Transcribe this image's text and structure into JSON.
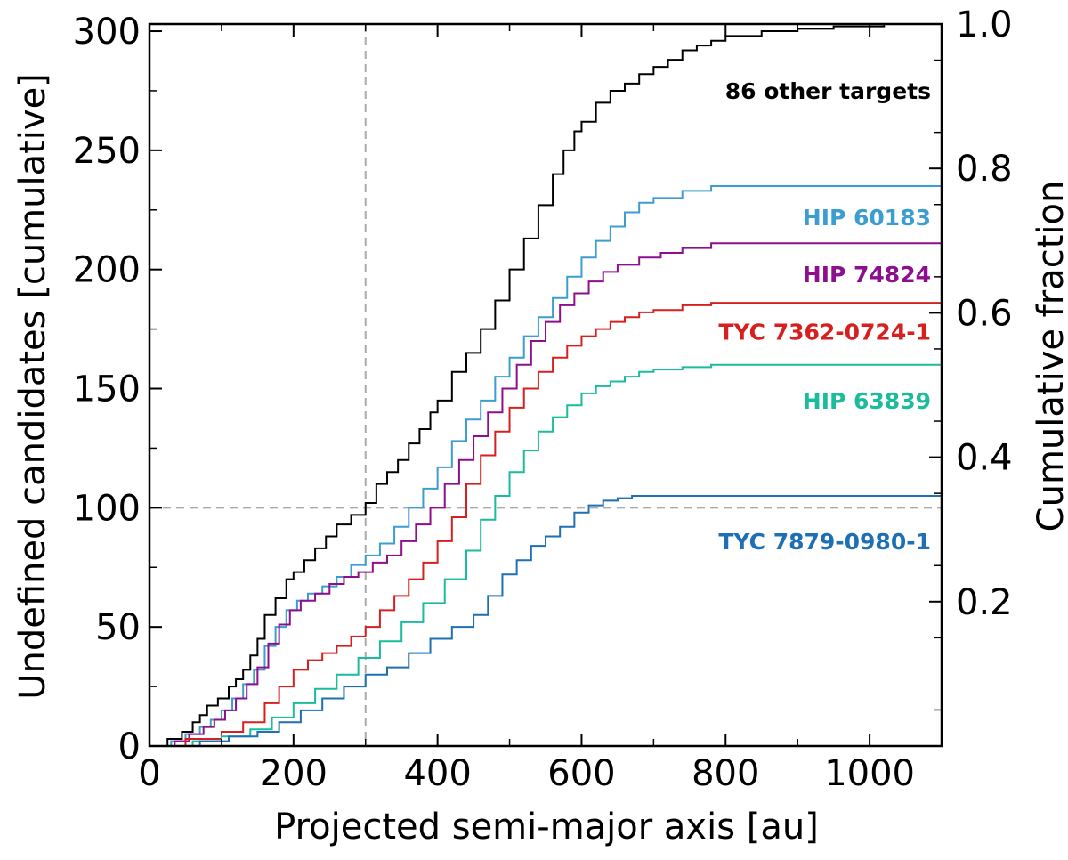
{
  "chart_data": {
    "type": "line",
    "step": true,
    "xlabel": "Projected semi-major axis [au]",
    "ylabel": "Undefined candidates [cumulative]",
    "y2label": "Cumulative fraction",
    "xlim": [
      0,
      1100
    ],
    "ylim": [
      0,
      303
    ],
    "y2lim": [
      0,
      1.0
    ],
    "xticks": [
      0,
      200,
      400,
      600,
      800,
      1000
    ],
    "yticks": [
      0,
      50,
      100,
      150,
      200,
      250,
      300
    ],
    "y2ticks": [
      0.2,
      0.4,
      0.6,
      0.8,
      1.0
    ],
    "xtick_labels": [
      "0",
      "200",
      "400",
      "600",
      "800",
      "1000"
    ],
    "ytick_labels": [
      "0",
      "50",
      "100",
      "150",
      "200",
      "250",
      "300"
    ],
    "y2tick_labels": [
      "0.2",
      "0.4",
      "0.6",
      "0.8",
      "1.0"
    ],
    "reference_lines": [
      {
        "axis": "x",
        "value": 300,
        "color": "#aaaaaa",
        "style": "dashed"
      },
      {
        "axis": "y",
        "value": 100,
        "color": "#aaaaaa",
        "style": "dashed"
      }
    ],
    "series": [
      {
        "name": "86 other targets",
        "color": "#000000",
        "label_y": 275,
        "x": [
          0,
          25,
          45,
          60,
          70,
          80,
          95,
          110,
          120,
          130,
          140,
          150,
          160,
          175,
          190,
          200,
          215,
          230,
          245,
          260,
          280,
          300,
          315,
          330,
          345,
          360,
          375,
          390,
          400,
          420,
          440,
          460,
          480,
          500,
          520,
          540,
          560,
          575,
          590,
          600,
          620,
          640,
          660,
          680,
          700,
          720,
          740,
          760,
          780,
          800,
          850,
          900,
          950,
          1020
        ],
        "y": [
          0,
          3,
          6,
          10,
          13,
          17,
          20,
          25,
          28,
          32,
          38,
          45,
          55,
          62,
          70,
          73,
          78,
          83,
          88,
          93,
          97,
          102,
          110,
          115,
          120,
          127,
          133,
          140,
          145,
          157,
          165,
          175,
          187,
          200,
          213,
          227,
          240,
          250,
          258,
          262,
          270,
          275,
          278,
          282,
          285,
          288,
          292,
          294,
          296,
          298,
          300,
          301,
          302,
          303
        ]
      },
      {
        "name": "HIP 60183",
        "color": "#3c9dd0",
        "label_y": 222,
        "x": [
          0,
          30,
          50,
          70,
          85,
          100,
          115,
          130,
          145,
          160,
          175,
          190,
          205,
          220,
          240,
          260,
          280,
          300,
          320,
          340,
          360,
          380,
          400,
          420,
          440,
          460,
          480,
          500,
          520,
          540,
          560,
          580,
          600,
          620,
          640,
          660,
          680,
          700,
          740,
          780
        ],
        "y": [
          0,
          2,
          5,
          8,
          11,
          15,
          20,
          26,
          32,
          42,
          50,
          57,
          61,
          64,
          67,
          71,
          76,
          80,
          85,
          92,
          100,
          108,
          117,
          128,
          137,
          145,
          155,
          163,
          172,
          180,
          188,
          197,
          205,
          212,
          218,
          224,
          228,
          230,
          233,
          235
        ]
      },
      {
        "name": "HIP 74824",
        "color": "#8e0f8e",
        "label_y": 198,
        "x": [
          0,
          35,
          55,
          75,
          90,
          105,
          120,
          135,
          150,
          165,
          180,
          195,
          210,
          230,
          250,
          270,
          290,
          310,
          330,
          350,
          370,
          390,
          410,
          430,
          450,
          470,
          490,
          510,
          530,
          550,
          570,
          590,
          610,
          630,
          650,
          680,
          710,
          740,
          780
        ],
        "y": [
          0,
          2,
          5,
          8,
          11,
          15,
          20,
          26,
          33,
          43,
          51,
          57,
          61,
          64,
          68,
          71,
          73,
          77,
          80,
          86,
          93,
          100,
          110,
          120,
          130,
          140,
          150,
          160,
          170,
          178,
          185,
          190,
          195,
          199,
          202,
          205,
          207,
          209,
          211
        ]
      },
      {
        "name": "TYC 7362-0724-1",
        "color": "#d62020",
        "label_y": 174,
        "x": [
          0,
          50,
          100,
          130,
          160,
          180,
          200,
          220,
          240,
          260,
          280,
          300,
          320,
          340,
          360,
          380,
          400,
          420,
          440,
          460,
          480,
          500,
          520,
          540,
          560,
          580,
          600,
          620,
          640,
          660,
          680,
          700,
          740,
          780
        ],
        "y": [
          0,
          3,
          6,
          10,
          18,
          25,
          32,
          36,
          39,
          42,
          46,
          50,
          57,
          63,
          70,
          77,
          86,
          96,
          110,
          122,
          132,
          142,
          150,
          157,
          163,
          168,
          172,
          175,
          178,
          180,
          182,
          183,
          185,
          186
        ]
      },
      {
        "name": "HIP 63839",
        "color": "#1abc9c",
        "label_y": 145,
        "x": [
          0,
          60,
          100,
          140,
          170,
          200,
          230,
          260,
          290,
          320,
          350,
          380,
          410,
          440,
          460,
          480,
          500,
          520,
          540,
          560,
          580,
          600,
          620,
          640,
          660,
          680,
          700,
          740,
          780
        ],
        "y": [
          0,
          2,
          4,
          7,
          12,
          18,
          24,
          30,
          37,
          44,
          52,
          60,
          70,
          82,
          95,
          105,
          115,
          124,
          132,
          138,
          143,
          148,
          151,
          153,
          155,
          157,
          158,
          159,
          160
        ]
      },
      {
        "name": "TYC 7879-0980-1",
        "color": "#1f6fb4",
        "label_y": 86,
        "x": [
          0,
          70,
          110,
          150,
          180,
          210,
          240,
          270,
          300,
          330,
          360,
          390,
          420,
          450,
          470,
          490,
          510,
          530,
          550,
          570,
          590,
          610,
          630,
          650,
          670
        ],
        "y": [
          0,
          2,
          4,
          6,
          10,
          15,
          20,
          25,
          30,
          33,
          39,
          45,
          50,
          55,
          63,
          72,
          78,
          84,
          88,
          92,
          98,
          101,
          103,
          104,
          105
        ]
      }
    ]
  }
}
